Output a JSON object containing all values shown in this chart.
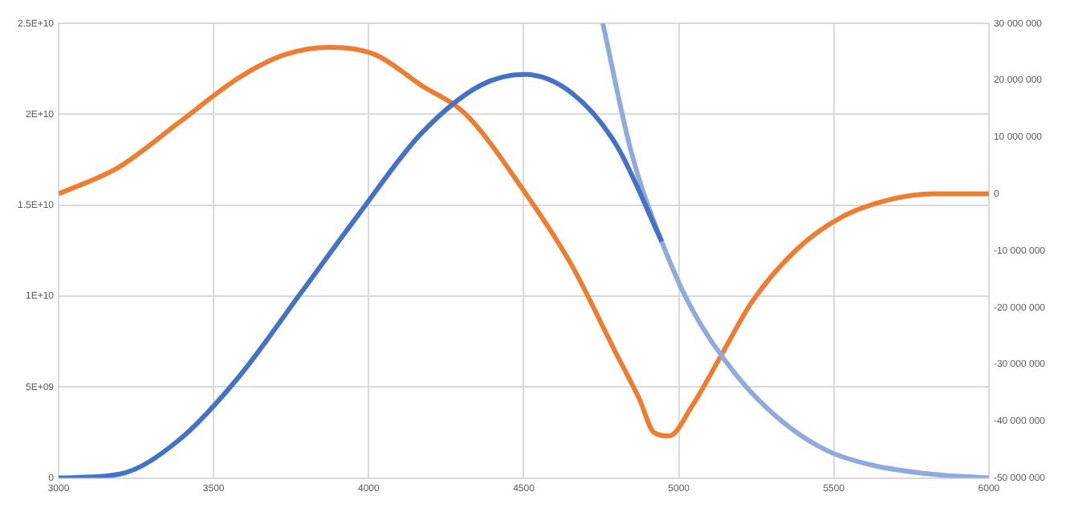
{
  "chart_data": {
    "type": "line",
    "xlim": [
      3000,
      6000
    ],
    "xticks": [
      3000,
      3500,
      4000,
      4500,
      5000,
      5500,
      6000
    ],
    "ylim": [
      0,
      25000000000
    ],
    "yticks": [
      {
        "value": 0,
        "label": "0"
      },
      {
        "value": 5000000000,
        "label": "5E+09"
      },
      {
        "value": 10000000000,
        "label": "1E+10"
      },
      {
        "value": 15000000000,
        "label": "1.5E+10"
      },
      {
        "value": 20000000000,
        "label": "2E+10"
      },
      {
        "value": 25000000000,
        "label": "2.5E+10"
      }
    ],
    "y2lim": [
      -50000000,
      30000000
    ],
    "y2ticks": [
      {
        "value": -50000000,
        "label": "-50 000 000"
      },
      {
        "value": -40000000,
        "label": "-40 000 000"
      },
      {
        "value": -30000000,
        "label": "-30 000 000"
      },
      {
        "value": -20000000,
        "label": "-20 000 000"
      },
      {
        "value": -10000000,
        "label": "-10 000 000"
      },
      {
        "value": 0,
        "label": "0"
      },
      {
        "value": 10000000,
        "label": "10 000 000"
      },
      {
        "value": 20000000,
        "label": "20 000 000"
      },
      {
        "value": 30000000,
        "label": "30 000 000"
      }
    ],
    "grid": true,
    "legend": false,
    "marker": "none",
    "line_style": "solid",
    "series": [
      {
        "color": "#4472c4",
        "x": [
          3000,
          3194,
          3389,
          3583,
          3778,
          3972,
          4167,
          4361,
          4502,
          4653,
          4799,
          4945
        ],
        "values": [
          0,
          200000000,
          2100000000,
          5600000000,
          10100000000,
          14600000000,
          18900000000,
          21600000000,
          22200000000,
          21200000000,
          18300000000,
          13000000000
        ]
      },
      {
        "color": "#8faadc",
        "x": [
          4755,
          4847,
          4945,
          5042,
          5188,
          5334,
          5479,
          5625,
          5820,
          6000
        ],
        "values": [
          25000000000,
          17900000000,
          13000000000,
          9300000000,
          5600000000,
          3100000000,
          1500000000,
          700000000,
          200000000,
          0
        ]
      },
      {
        "color": "#ed7d31",
        "axis": "y2",
        "x": [
          3000,
          3194,
          3389,
          3583,
          3729,
          3875,
          4021,
          4167,
          4313,
          4507,
          4653,
          4799,
          4872,
          4920,
          4969,
          5042,
          5139,
          5236,
          5382,
          5528,
          5674,
          5820,
          6000
        ],
        "values": [
          0,
          4700000,
          12600000,
          20500000,
          24500000,
          25800000,
          24500000,
          19200000,
          14000000,
          0,
          -12400000,
          -28200000,
          -36000000,
          -42000000,
          -42600000,
          -37400000,
          -28200000,
          -19000000,
          -9700000,
          -4000000,
          -1100000,
          0,
          0
        ]
      }
    ]
  }
}
